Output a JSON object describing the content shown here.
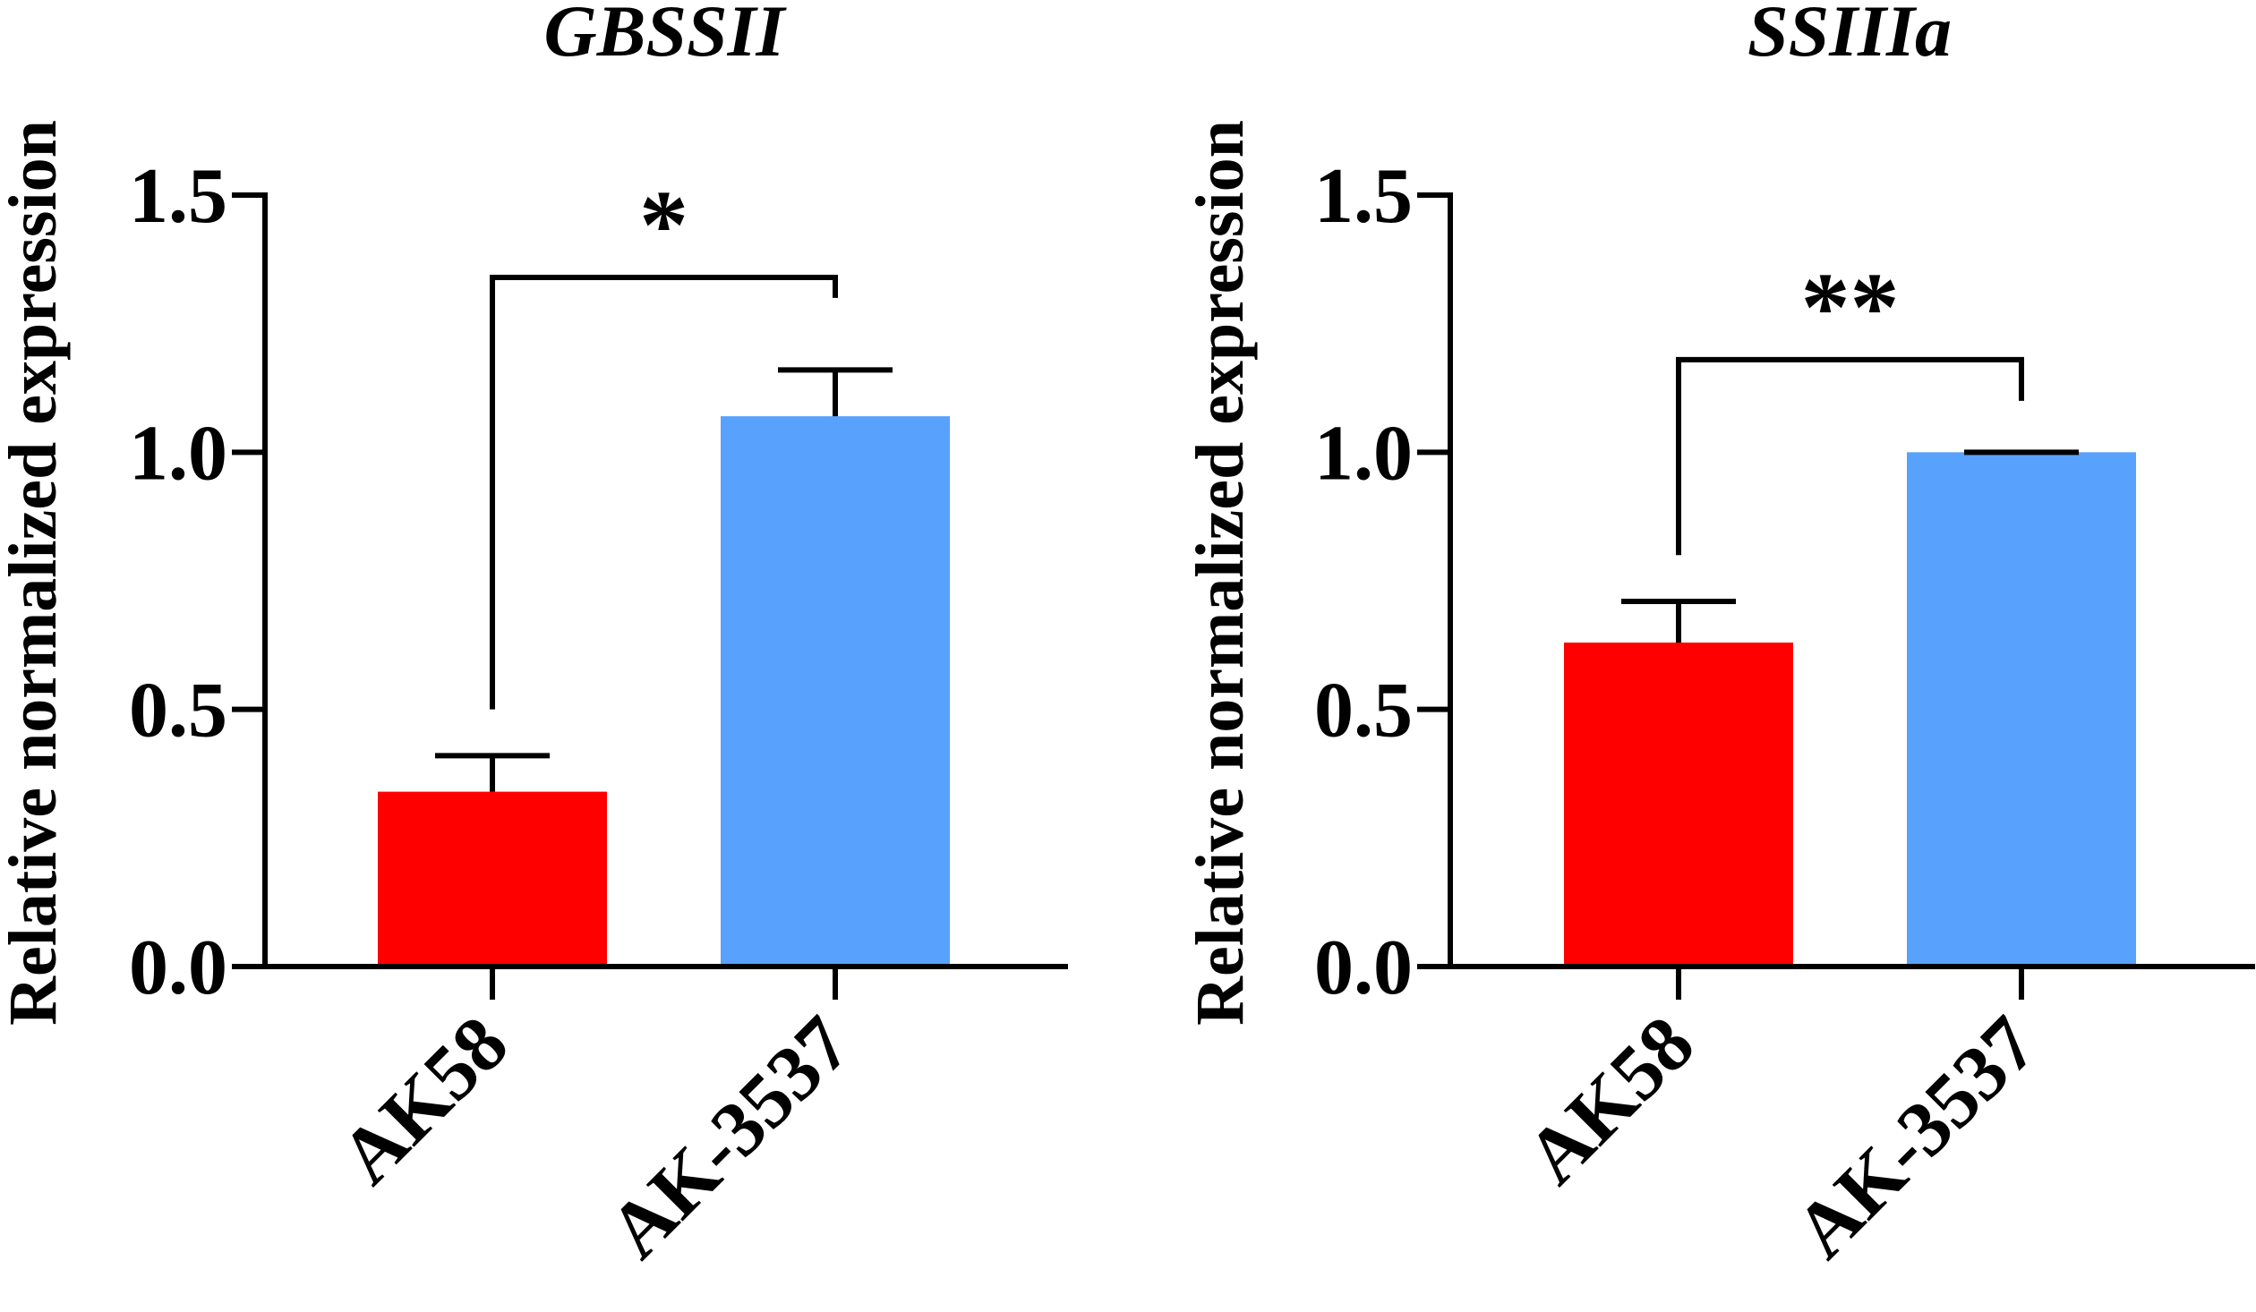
{
  "chart_data": [
    {
      "type": "bar",
      "title": "GBSSII",
      "ylabel": "Relative normalized expression",
      "xlabel": "",
      "categories": [
        "AK58",
        "AK-3537"
      ],
      "values": [
        0.34,
        1.07
      ],
      "errors": [
        0.07,
        0.09
      ],
      "colors": [
        "#ff0000",
        "#58a1fc"
      ],
      "ylim": [
        0,
        1.5
      ],
      "yticks": [
        0.0,
        0.5,
        1.0,
        1.5
      ],
      "ytick_labels": [
        "0.0",
        "0.5",
        "1.0",
        "1.5"
      ],
      "significance": {
        "label": "*",
        "left_end": 0.5,
        "right_end": 1.3,
        "level": 1.34
      }
    },
    {
      "type": "bar",
      "title": "SSIIIa",
      "ylabel": "Relative normalized expression",
      "xlabel": "",
      "categories": [
        "AK58",
        "AK-3537"
      ],
      "values": [
        0.63,
        1.0
      ],
      "errors": [
        0.08,
        0.0
      ],
      "colors": [
        "#ff0000",
        "#58a1fc"
      ],
      "ylim": [
        0,
        1.5
      ],
      "yticks": [
        0.0,
        0.5,
        1.0,
        1.5
      ],
      "ytick_labels": [
        "0.0",
        "0.5",
        "1.0",
        "1.5"
      ],
      "significance": {
        "label": "**",
        "left_end": 0.8,
        "right_end": 1.1,
        "level": 1.18
      }
    }
  ]
}
